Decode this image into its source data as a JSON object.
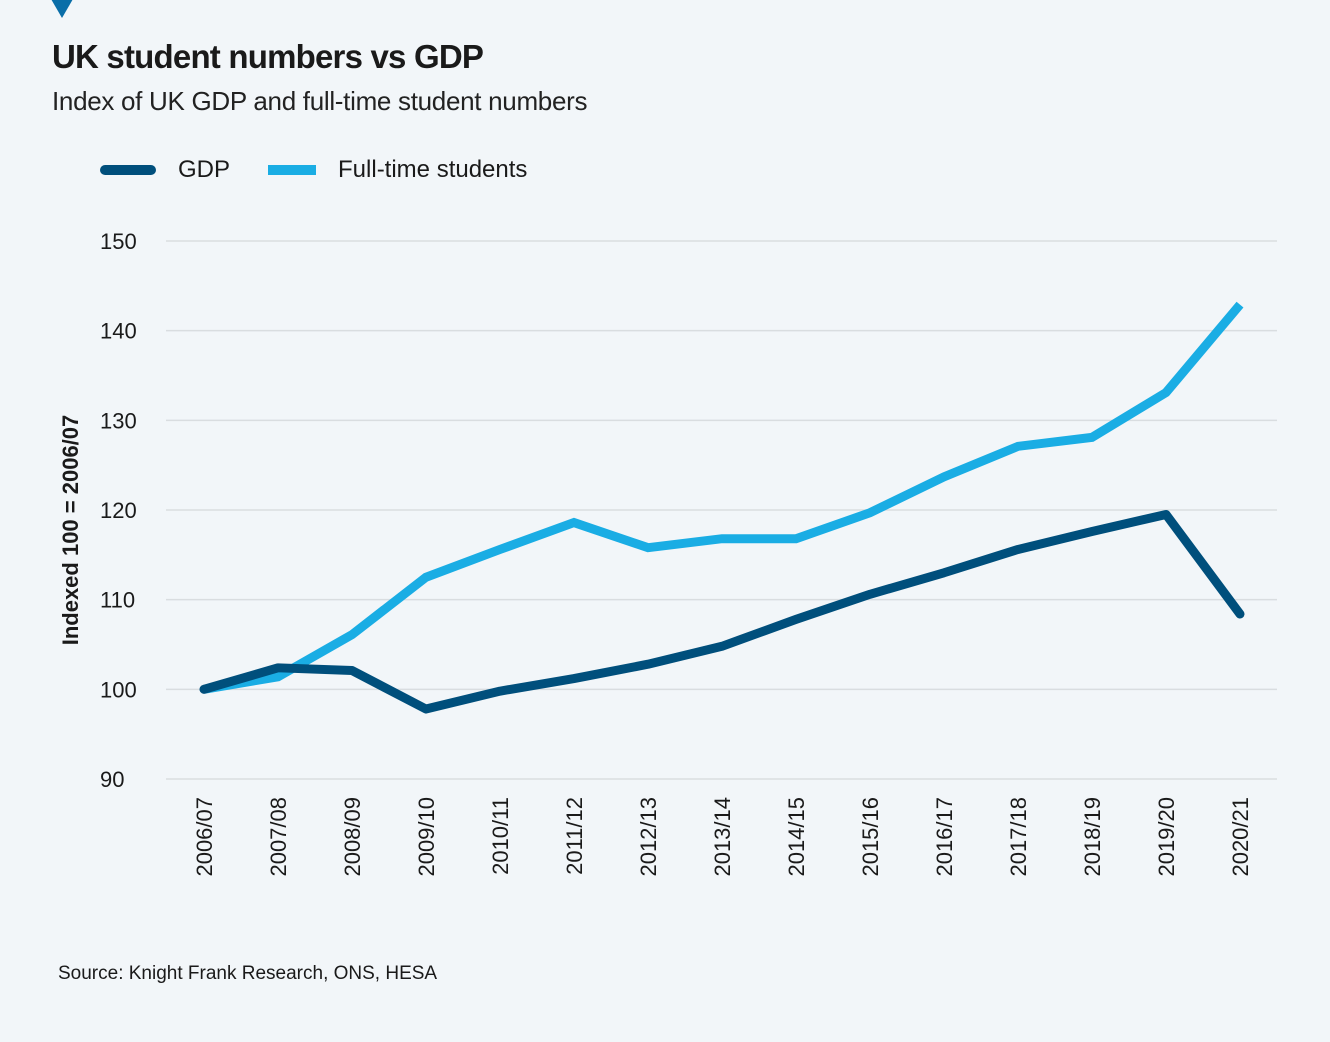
{
  "header": {
    "title": "UK student numbers vs GDP",
    "subtitle": "Index of UK GDP and full-time student numbers"
  },
  "legend": [
    {
      "label": "GDP",
      "color": "#004f7c"
    },
    {
      "label": "Full-time students",
      "color": "#1aade4"
    }
  ],
  "footer": {
    "source": "Source: Knight Frank Research, ONS, HESA"
  },
  "colors": {
    "background": "#f2f6f9",
    "grid": "#d9dde0",
    "accent": "#0a6ea8"
  },
  "chart_data": {
    "type": "line",
    "title": "UK student numbers vs GDP",
    "subtitle": "Index of UK GDP and full-time student numbers",
    "xlabel": "",
    "ylabel": "Indexed 100 = 2006/07",
    "ylim": [
      90,
      150
    ],
    "yticks": [
      90,
      100,
      110,
      120,
      130,
      140,
      150
    ],
    "grid": true,
    "legend_position": "top-left",
    "categories": [
      "2006/07",
      "2007/08",
      "2008/09",
      "2009/10",
      "2010/11",
      "2011/12",
      "2012/13",
      "2013/14",
      "2014/15",
      "2015/16",
      "2016/17",
      "2017/18",
      "2018/19",
      "2019/20",
      "2020/21"
    ],
    "series": [
      {
        "name": "GDP",
        "color": "#004f7c",
        "values": [
          100,
          102.4,
          102.1,
          97.8,
          99.8,
          101.2,
          102.8,
          104.8,
          107.8,
          110.6,
          113.0,
          115.6,
          117.6,
          119.5,
          108.4
        ]
      },
      {
        "name": "Full-time students",
        "color": "#1aade4",
        "values": [
          100,
          101.4,
          106.1,
          112.5,
          115.6,
          118.6,
          115.8,
          116.8,
          116.8,
          119.7,
          123.7,
          127.1,
          128.1,
          133.1,
          142.9
        ]
      }
    ]
  }
}
